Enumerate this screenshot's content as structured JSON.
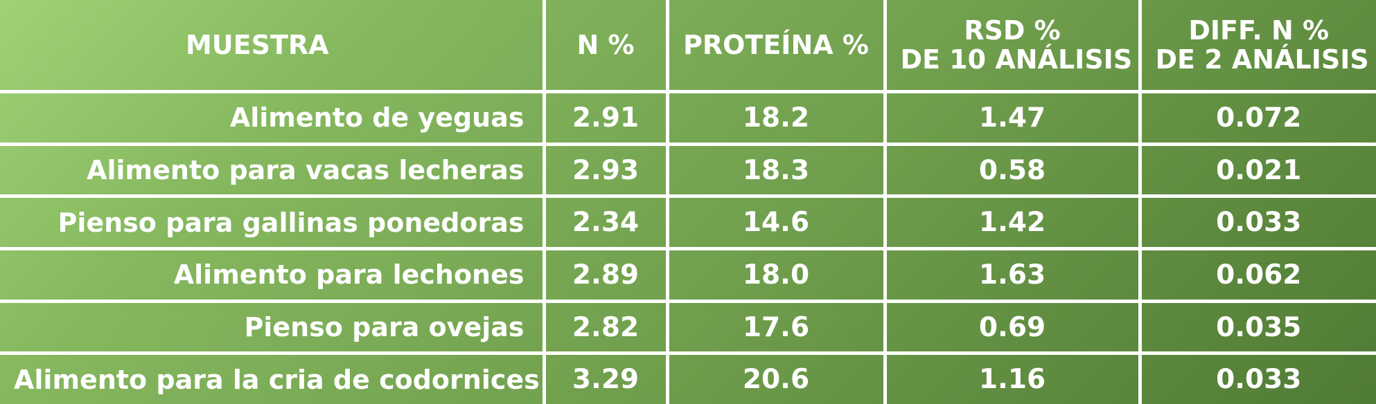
{
  "table": {
    "headers": [
      {
        "key": "muestra",
        "lines": [
          "MUESTRA"
        ]
      },
      {
        "key": "n",
        "lines": [
          "N %"
        ]
      },
      {
        "key": "proteina",
        "lines": [
          "PROTEÍNA %"
        ]
      },
      {
        "key": "rsd",
        "lines": [
          "RSD %",
          "DE 10 ANÁLISIS"
        ]
      },
      {
        "key": "diff",
        "lines": [
          "DIFF. N %",
          "DE 2 ANÁLISIS"
        ]
      }
    ],
    "rows": [
      {
        "muestra": "Alimento de yeguas",
        "n": "2.91",
        "proteina": "18.2",
        "rsd": "1.47",
        "diff": "0.072"
      },
      {
        "muestra": "Alimento para vacas lecheras",
        "n": "2.93",
        "proteina": "18.3",
        "rsd": "0.58",
        "diff": "0.021"
      },
      {
        "muestra": "Pienso para gallinas ponedoras",
        "n": "2.34",
        "proteina": "14.6",
        "rsd": "1.42",
        "diff": "0.033"
      },
      {
        "muestra": "Alimento para lechones",
        "n": "2.89",
        "proteina": "18.0",
        "rsd": "1.63",
        "diff": "0.062"
      },
      {
        "muestra": "Pienso para ovejas",
        "n": "2.82",
        "proteina": "17.6",
        "rsd": "0.69",
        "diff": "0.035"
      },
      {
        "muestra": "Alimento para la cria de codornices",
        "n": "3.29",
        "proteina": "20.6",
        "rsd": "1.16",
        "diff": "0.033"
      }
    ]
  },
  "colors": {
    "gradient_start": "#9fd175",
    "gradient_end": "#507b35",
    "grid_lines": "#ffffff",
    "text": "#ffffff"
  }
}
